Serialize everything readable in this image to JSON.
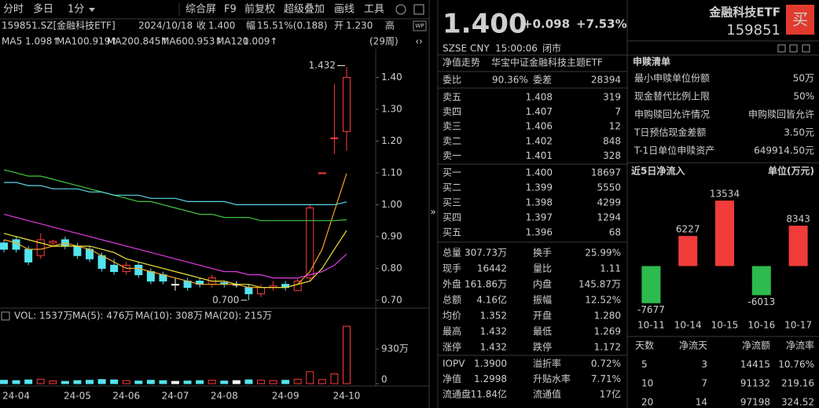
{
  "toolbar": {
    "tabs": [
      "分时",
      "多日",
      "1分"
    ],
    "tools": [
      "综合屏",
      "F9",
      "前复权",
      "超级叠加",
      "画线",
      "工具"
    ]
  },
  "info": {
    "code": "159851.SZ[金融科技ETF]",
    "date": "2024/10/18",
    "close_label": "收",
    "close": "1.400",
    "range_label": "幅",
    "range": "15.51%(0.188)",
    "open_label": "开",
    "open": "1.230",
    "high_label": "高",
    "period": "(29周)"
  },
  "volume_legend": [
    "VOL: 1537万",
    "MA(5): 476万",
    "MA(10): 308万",
    "MA(20): 215万"
  ],
  "chart_data": [
    {
      "type": "candlestick",
      "categories": [
        null,
        "24-04",
        null,
        null,
        null,
        null,
        "24-05",
        null,
        null,
        null,
        "24-06",
        null,
        null,
        null,
        "24-07",
        null,
        null,
        null,
        "24-08",
        null,
        null,
        null,
        null,
        "24-09",
        null,
        null,
        null,
        null,
        "24-10"
      ],
      "open": [
        0.88,
        0.89,
        0.86,
        0.84,
        0.88,
        0.89,
        0.87,
        0.86,
        0.84,
        0.81,
        0.79,
        0.81,
        0.79,
        0.78,
        0.75,
        0.76,
        0.76,
        0.75,
        0.755,
        0.75,
        0.74,
        0.72,
        0.74,
        0.75,
        0.73,
        0.77,
        1.1,
        1.21,
        1.23
      ],
      "high": [
        0.89,
        0.9,
        0.87,
        0.91,
        0.89,
        0.9,
        0.88,
        0.87,
        0.85,
        0.83,
        0.82,
        0.82,
        0.8,
        0.79,
        0.77,
        0.77,
        0.77,
        0.78,
        0.76,
        0.76,
        0.75,
        0.75,
        0.76,
        0.76,
        0.77,
        1.0,
        1.1,
        1.38,
        1.432
      ],
      "low": [
        0.85,
        0.85,
        0.81,
        0.83,
        0.87,
        0.86,
        0.83,
        0.82,
        0.79,
        0.78,
        0.78,
        0.77,
        0.75,
        0.75,
        0.73,
        0.73,
        0.74,
        0.74,
        0.74,
        0.74,
        0.7,
        0.71,
        0.73,
        0.73,
        0.73,
        0.76,
        1.1,
        1.16,
        1.17
      ],
      "close": [
        0.86,
        0.86,
        0.82,
        0.89,
        0.885,
        0.87,
        0.84,
        0.83,
        0.8,
        0.79,
        0.81,
        0.78,
        0.76,
        0.76,
        0.75,
        0.74,
        0.75,
        0.77,
        0.75,
        0.75,
        0.72,
        0.74,
        0.745,
        0.74,
        0.76,
        0.99,
        1.1,
        1.21,
        1.4
      ],
      "up_color": "#ff3b3b",
      "down_color": "#54e4ee",
      "flat_color": "#ffffff",
      "ylim": [
        0.68,
        1.49
      ],
      "yticks": [
        {
          "value": 0.7,
          "label": "0.70"
        },
        {
          "value": 0.8,
          "label": "0.80"
        },
        {
          "value": 0.9,
          "label": "0.90"
        },
        {
          "value": 1.0,
          "label": "1.00"
        },
        {
          "value": 1.1,
          "label": "1.10"
        },
        {
          "value": 1.2,
          "label": "1.20"
        },
        {
          "value": 1.3,
          "label": "1.30"
        },
        {
          "value": 1.4,
          "label": "1.40"
        }
      ],
      "series": [
        {
          "name": "MA5",
          "color": "#f5a623",
          "legend": "1.098↑",
          "values": [
            0.89,
            0.88,
            0.86,
            0.86,
            0.87,
            0.88,
            0.87,
            0.86,
            0.84,
            0.82,
            0.8,
            0.8,
            0.79,
            0.78,
            0.77,
            0.76,
            0.75,
            0.75,
            0.75,
            0.75,
            0.74,
            0.74,
            0.74,
            0.74,
            0.75,
            0.79,
            0.86,
            0.98,
            1.098
          ]
        },
        {
          "name": "MA10",
          "color": "#f2e33a",
          "legend": "0.919↑",
          "values": [
            0.91,
            0.9,
            0.89,
            0.88,
            0.87,
            0.87,
            0.87,
            0.87,
            0.86,
            0.85,
            0.83,
            0.82,
            0.81,
            0.8,
            0.79,
            0.78,
            0.77,
            0.76,
            0.76,
            0.75,
            0.75,
            0.74,
            0.74,
            0.74,
            0.75,
            0.76,
            0.8,
            0.86,
            0.919
          ]
        },
        {
          "name": "MA20",
          "color": "#e03ce0",
          "legend": "0.845↑",
          "values": [
            0.97,
            0.96,
            0.95,
            0.94,
            0.93,
            0.92,
            0.91,
            0.9,
            0.89,
            0.88,
            0.87,
            0.86,
            0.85,
            0.84,
            0.83,
            0.82,
            0.81,
            0.8,
            0.79,
            0.79,
            0.78,
            0.78,
            0.77,
            0.77,
            0.77,
            0.78,
            0.79,
            0.81,
            0.845
          ]
        },
        {
          "name": "MA60",
          "color": "#3ec83e",
          "legend": "0.953↑",
          "values": [
            1.11,
            1.1,
            1.09,
            1.09,
            1.08,
            1.07,
            1.06,
            1.05,
            1.04,
            1.03,
            1.02,
            1.01,
            1.01,
            1.0,
            0.99,
            0.98,
            0.97,
            0.97,
            0.96,
            0.96,
            0.96,
            0.95,
            0.95,
            0.95,
            0.95,
            0.95,
            0.95,
            0.95,
            0.953
          ]
        },
        {
          "name": "MA120",
          "color": "#5ad8e8",
          "legend": "1.009↑",
          "values": [
            1.07,
            1.07,
            1.06,
            1.06,
            1.05,
            1.05,
            1.05,
            1.04,
            1.04,
            1.03,
            1.03,
            1.03,
            1.02,
            1.02,
            1.02,
            1.01,
            1.01,
            1.01,
            1.01,
            1.0,
            1.0,
            1.0,
            1.0,
            1.0,
            1.0,
            1.0,
            1.0,
            1.0,
            1.009
          ]
        }
      ],
      "annotations": [
        "1.432",
        "0.700"
      ]
    },
    {
      "type": "volume",
      "values": [
        90,
        80,
        100,
        120,
        70,
        60,
        80,
        90,
        110,
        100,
        80,
        70,
        90,
        80,
        60,
        70,
        80,
        90,
        70,
        80,
        100,
        90,
        80,
        90,
        120,
        320,
        110,
        260,
        1537
      ],
      "ylim": [
        0,
        1600
      ],
      "yticks": [
        0,
        {
          "value": 930,
          "label": "930万"
        }
      ]
    },
    {
      "type": "bar",
      "title": "近5日净流入",
      "unit": "单位(万元)",
      "categories": [
        "10-11",
        "10-14",
        "10-15",
        "10-16",
        "10-17"
      ],
      "values": [
        -7677,
        6227,
        13534,
        -6013,
        8343
      ],
      "positive_color": "#f23b3b",
      "negative_color": "#2dbb4e",
      "ylim": [
        -10000,
        16000
      ]
    }
  ],
  "quote": {
    "price": "1.400",
    "change": "+0.098",
    "percent": "+7.53%",
    "market": "SZSE",
    "currency": "CNY",
    "time": "15:00:06",
    "status": "闭市"
  },
  "tabs": [
    "净值走势",
    "华宝中证金融科技主题ETF"
  ],
  "order_book": {
    "ratio_label": "委比",
    "ratio": "90.36%",
    "diff_label": "委差",
    "diff": "28394",
    "asks": [
      [
        "卖五",
        "1.408",
        "319"
      ],
      [
        "卖四",
        "1.407",
        "7"
      ],
      [
        "卖三",
        "1.406",
        "12"
      ],
      [
        "卖二",
        "1.402",
        "848"
      ],
      [
        "卖一",
        "1.401",
        "328"
      ]
    ],
    "bids": [
      [
        "买一",
        "1.400",
        "18697"
      ],
      [
        "买二",
        "1.399",
        "5550"
      ],
      [
        "买三",
        "1.398",
        "4299"
      ],
      [
        "买四",
        "1.397",
        "1294"
      ],
      [
        "买五",
        "1.396",
        "68"
      ]
    ]
  },
  "stats": [
    [
      "总量",
      "307.73万",
      "换手",
      "25.99%"
    ],
    [
      "现手",
      "16442",
      "量比",
      "1.11"
    ],
    [
      "外盘",
      "161.86万",
      "内盘",
      "145.87万"
    ],
    [
      "总额",
      "4.16亿",
      "振幅",
      "12.52%"
    ],
    [
      "均价",
      "1.352",
      "开盘",
      "1.280"
    ],
    [
      "最高",
      "1.432",
      "最低",
      "1.269"
    ],
    [
      "涨停",
      "1.432",
      "跌停",
      "1.172"
    ]
  ],
  "nav": [
    [
      "IOPV",
      "1.3900",
      "溢折率",
      "0.72%"
    ],
    [
      "净值",
      "1.2998",
      "升贴水率",
      "7.71%"
    ],
    [
      "流通盘",
      "11.84亿",
      "流通值",
      "17亿"
    ]
  ],
  "fund": {
    "name": "金融科技ETF",
    "code": "159851",
    "buy": "买"
  },
  "creation": {
    "title": "申赎清单",
    "rows": [
      [
        "最小申赎单位份额",
        "50万"
      ],
      [
        "现金替代比例上限",
        "50%"
      ],
      [
        "申购赎回允许情况",
        "申购赎回皆允许"
      ],
      [
        "T日预估现金差额",
        "3.50元"
      ],
      [
        "T-1日单位申赎资产",
        "649914.50元"
      ]
    ]
  },
  "flow_table": {
    "headers": [
      "天数",
      "净流天",
      "净流额",
      "净流率"
    ],
    "rows": [
      [
        "5",
        "3",
        "14415",
        "10.76%"
      ],
      [
        "10",
        "7",
        "91132",
        "219.16"
      ],
      [
        "20",
        "14",
        "97198",
        "324.52"
      ]
    ]
  }
}
